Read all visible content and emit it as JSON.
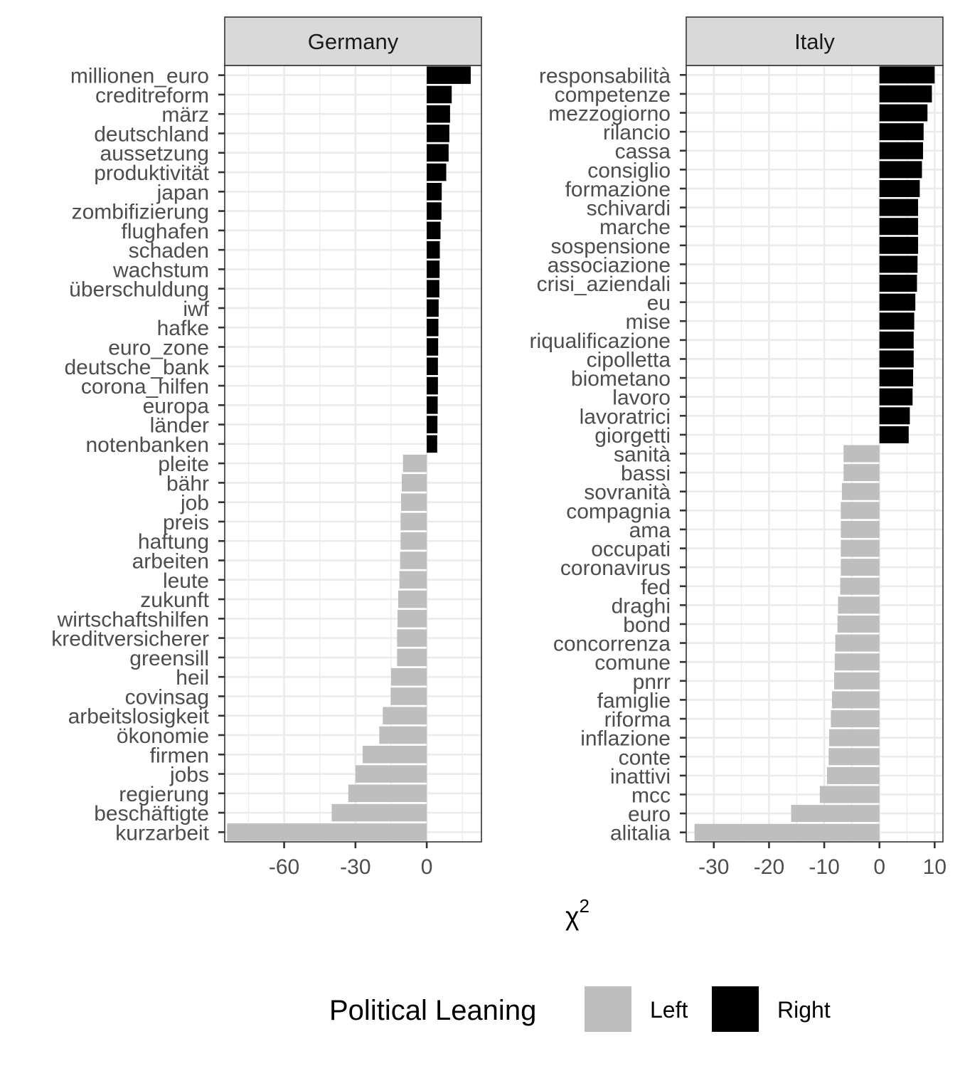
{
  "chart_data": [
    {
      "type": "bar",
      "orientation": "horizontal",
      "panel": "Germany",
      "xlim": [
        -85,
        23
      ],
      "x_ticks": [
        -60,
        -30,
        0
      ],
      "x_tick_labels": [
        "-60",
        "-30",
        "0"
      ],
      "categories": [
        "millionen_euro",
        "creditreform",
        "märz",
        "deutschland",
        "aussetzung",
        "produktivität",
        "japan",
        "zombifizierung",
        "flughafen",
        "schaden",
        "wachstum",
        "überschuldung",
        "iwf",
        "hafke",
        "euro_zone",
        "deutsche_bank",
        "corona_hilfen",
        "europa",
        "länder",
        "notenbanken",
        "pleite",
        "bähr",
        "job",
        "preis",
        "haftung",
        "arbeiten",
        "leute",
        "zukunft",
        "wirtschaftshilfen",
        "kreditversicherer",
        "greensill",
        "heil",
        "covinsag",
        "arbeitslosigkeit",
        "ökonomie",
        "firmen",
        "jobs",
        "regierung",
        "beschäftigte",
        "kurzarbeit"
      ],
      "values": [
        18.5,
        10.5,
        9.8,
        9.5,
        9.2,
        8.2,
        6.3,
        6.2,
        5.8,
        5.5,
        5.4,
        5.3,
        5.0,
        4.9,
        4.8,
        4.7,
        4.7,
        4.6,
        4.5,
        4.4,
        -10,
        -10.5,
        -10.8,
        -11,
        -11,
        -11.2,
        -11.5,
        -12,
        -12.3,
        -12.5,
        -12.5,
        -15,
        -15.2,
        -18.5,
        -20,
        -27,
        -30,
        -33,
        -40,
        -84
      ],
      "leaning": [
        "Right",
        "Right",
        "Right",
        "Right",
        "Right",
        "Right",
        "Right",
        "Right",
        "Right",
        "Right",
        "Right",
        "Right",
        "Right",
        "Right",
        "Right",
        "Right",
        "Right",
        "Right",
        "Right",
        "Right",
        "Left",
        "Left",
        "Left",
        "Left",
        "Left",
        "Left",
        "Left",
        "Left",
        "Left",
        "Left",
        "Left",
        "Left",
        "Left",
        "Left",
        "Left",
        "Left",
        "Left",
        "Left",
        "Left",
        "Left"
      ],
      "grid": true
    },
    {
      "type": "bar",
      "orientation": "horizontal",
      "panel": "Italy",
      "xlim": [
        -35,
        11.5
      ],
      "x_ticks": [
        -30,
        -20,
        -10,
        0,
        10
      ],
      "x_tick_labels": [
        "-30",
        "-20",
        "-10",
        "0",
        "10"
      ],
      "categories": [
        "responsabilità",
        "competenze",
        "mezzogiorno",
        "rilancio",
        "cassa",
        "consiglio",
        "formazione",
        "schivardi",
        "marche",
        "sospensione",
        "associazione",
        "crisi_aziendali",
        "eu",
        "mise",
        "riqualificazione",
        "cipolletta",
        "biometano",
        "lavoro",
        "lavoratrici",
        "giorgetti",
        "sanità",
        "bassi",
        "sovranità",
        "compagnia",
        "ama",
        "occupati",
        "coronavirus",
        "fed",
        "draghi",
        "bond",
        "concorrenza",
        "comune",
        "pnrr",
        "famiglie",
        "riforma",
        "inflazione",
        "conte",
        "inattivi",
        "mcc",
        "euro",
        "alitalia"
      ],
      "values": [
        10,
        9.5,
        8.7,
        8.0,
        7.9,
        7.7,
        7.3,
        7.0,
        7.0,
        7.0,
        6.9,
        6.8,
        6.5,
        6.3,
        6.2,
        6.2,
        6.1,
        6.0,
        5.5,
        5.3,
        -6.5,
        -6.5,
        -6.8,
        -7.0,
        -7.0,
        -7.0,
        -7.0,
        -7.1,
        -7.5,
        -7.6,
        -8.0,
        -8.1,
        -8.2,
        -8.6,
        -8.8,
        -9.1,
        -9.2,
        -9.5,
        -10.8,
        -16,
        -33.5
      ],
      "leaning": [
        "Right",
        "Right",
        "Right",
        "Right",
        "Right",
        "Right",
        "Right",
        "Right",
        "Right",
        "Right",
        "Right",
        "Right",
        "Right",
        "Right",
        "Right",
        "Right",
        "Right",
        "Right",
        "Right",
        "Right",
        "Left",
        "Left",
        "Left",
        "Left",
        "Left",
        "Left",
        "Left",
        "Left",
        "Left",
        "Left",
        "Left",
        "Left",
        "Left",
        "Left",
        "Left",
        "Left",
        "Left",
        "Left",
        "Left",
        "Left",
        "Left"
      ],
      "grid": true
    }
  ],
  "axis": {
    "xlabel_base": "χ",
    "xlabel_sup": "2"
  },
  "legend": {
    "title": "Political Leaning",
    "placement": "bottom",
    "items": [
      {
        "label": "Left",
        "color": "#bebebe"
      },
      {
        "label": "Right",
        "color": "#000000"
      }
    ]
  },
  "colors": {
    "Left": "#bebebe",
    "Right": "#000000",
    "strip_fill": "#d9d9d9",
    "grid": "#ebebeb",
    "text": "#4d4d4d",
    "axis": "#333333"
  }
}
